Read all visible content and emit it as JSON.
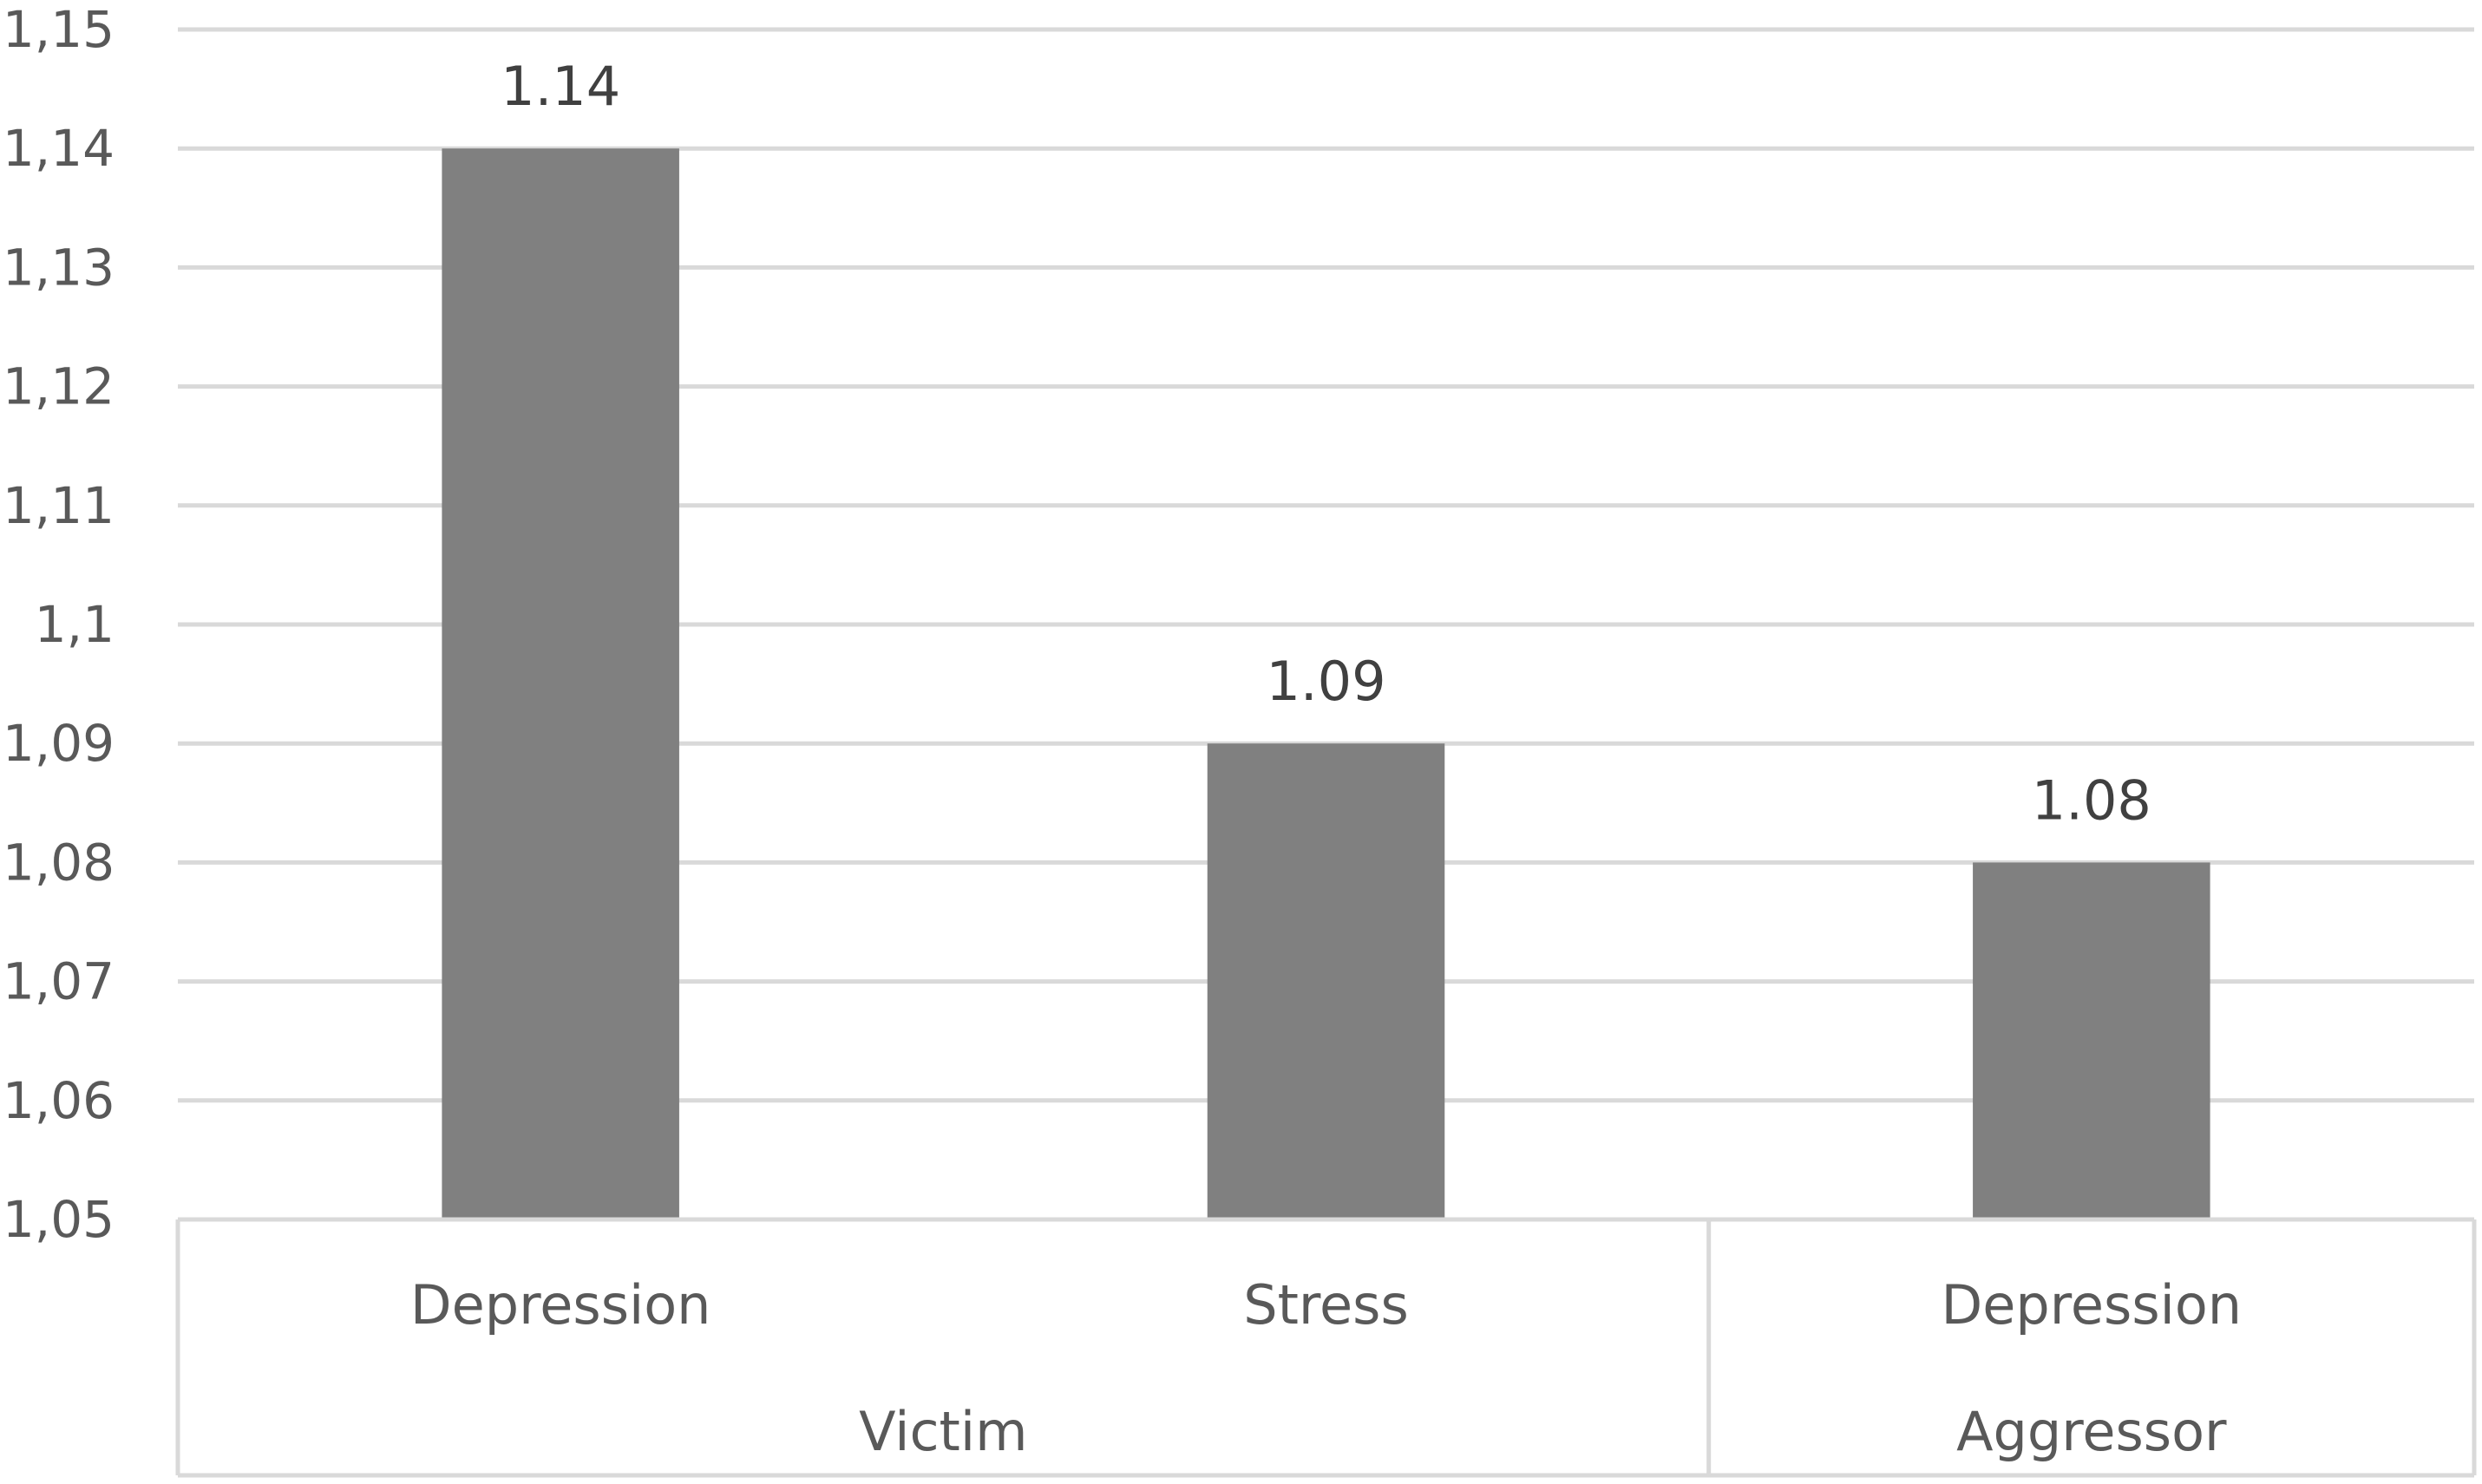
{
  "chart_data": {
    "type": "bar",
    "title": "",
    "xlabel": "",
    "ylabel": "",
    "ylim": [
      1.05,
      1.15
    ],
    "y_ticks": [
      "1,05",
      "1,06",
      "1,07",
      "1,08",
      "1,09",
      "1,1",
      "1,11",
      "1,12",
      "1,13",
      "1,14",
      "1,15"
    ],
    "y_tick_values": [
      1.05,
      1.06,
      1.07,
      1.08,
      1.09,
      1.1,
      1.11,
      1.12,
      1.13,
      1.14,
      1.15
    ],
    "grid": true,
    "legend": "none",
    "bar_color": "#808080",
    "categories": [
      "Depression",
      "Stress",
      "Depression"
    ],
    "values": [
      1.14,
      1.09,
      1.08
    ],
    "data_labels": [
      "1.14",
      "1.09",
      "1.08"
    ],
    "groups": [
      {
        "label": "Victim",
        "span": 2
      },
      {
        "label": "Aggressor",
        "span": 1
      }
    ]
  }
}
